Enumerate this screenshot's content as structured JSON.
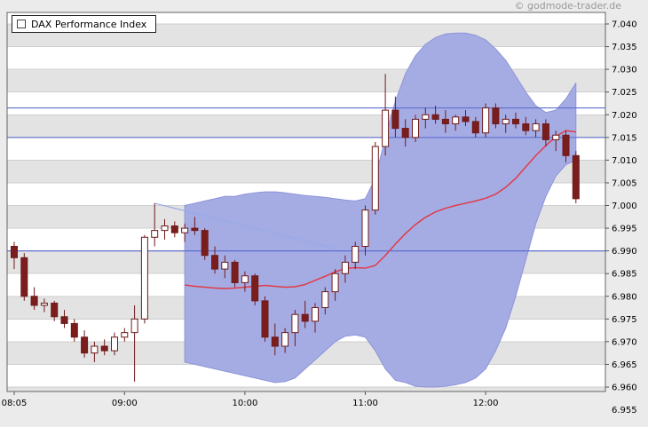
{
  "page": {
    "watermark": "© godmode-trader.de"
  },
  "legend": {
    "title": "DAX Performance Index"
  },
  "colors": {
    "outer_bg": "#ebebeb",
    "plot_bg": "#ffffff",
    "stripe": "#e3e3e3",
    "grid": "#cfcfcf",
    "frame": "#666666",
    "axis_text": "#000000",
    "band_fill": "#a5ace4",
    "band_edge": "#8c94d8",
    "candle_down": "#7a1d1d",
    "candle_up_fill": "#ffffff",
    "candle_edge": "#6e1a1a",
    "ma_line": "#e03c48",
    "hline": "#5f6fce",
    "trendline": "#98a9e6",
    "watermark_text": "#999999"
  },
  "chart_data": {
    "type": "candlestick",
    "title": "DAX Performance Index",
    "interval_minutes": 5,
    "grid": true,
    "legend_position": "top-left",
    "y_axis": {
      "min": 6.955,
      "max": 7.04,
      "step": 0.005,
      "labels": [
        "7.040",
        "7.035",
        "7.030",
        "7.025",
        "7.020",
        "7.015",
        "7.010",
        "7.005",
        "7.000",
        "6.995",
        "6.990",
        "6.985",
        "6.980",
        "6.975",
        "6.970",
        "6.965",
        "6.960",
        "6.955"
      ]
    },
    "x_axis": {
      "labels": [
        "08:05",
        "09:00",
        "10:00",
        "11:00",
        "12:00"
      ],
      "candle_indices": [
        0,
        11,
        23,
        35,
        47
      ]
    },
    "hlines": [
      7.0215,
      7.015,
      6.99
    ],
    "trendline": {
      "start_index": 14,
      "start_price": 7.0005,
      "end_index": 32,
      "end_price": 6.9905
    },
    "candles": [
      {
        "t": "08:05",
        "o": 6.991,
        "h": 6.992,
        "l": 6.986,
        "c": 6.9885
      },
      {
        "t": "08:10",
        "o": 6.9885,
        "h": 6.9895,
        "l": 6.979,
        "c": 6.98
      },
      {
        "t": "08:15",
        "o": 6.98,
        "h": 6.982,
        "l": 6.977,
        "c": 6.978
      },
      {
        "t": "08:20",
        "o": 6.978,
        "h": 6.9795,
        "l": 6.9765,
        "c": 6.9785
      },
      {
        "t": "08:25",
        "o": 6.9785,
        "h": 6.979,
        "l": 6.9745,
        "c": 6.9755
      },
      {
        "t": "08:30",
        "o": 6.9755,
        "h": 6.977,
        "l": 6.973,
        "c": 6.974
      },
      {
        "t": "08:35",
        "o": 6.974,
        "h": 6.975,
        "l": 6.97,
        "c": 6.971
      },
      {
        "t": "08:40",
        "o": 6.971,
        "h": 6.9725,
        "l": 6.9665,
        "c": 6.9675
      },
      {
        "t": "08:45",
        "o": 6.9675,
        "h": 6.97,
        "l": 6.9655,
        "c": 6.969
      },
      {
        "t": "08:50",
        "o": 6.969,
        "h": 6.9705,
        "l": 6.967,
        "c": 6.968
      },
      {
        "t": "08:55",
        "o": 6.968,
        "h": 6.972,
        "l": 6.967,
        "c": 6.971
      },
      {
        "t": "09:00",
        "o": 6.971,
        "h": 6.973,
        "l": 6.97,
        "c": 6.972
      },
      {
        "t": "09:05",
        "o": 6.972,
        "h": 6.978,
        "l": 6.9612,
        "c": 6.975
      },
      {
        "t": "09:10",
        "o": 6.975,
        "h": 6.9935,
        "l": 6.974,
        "c": 6.993
      },
      {
        "t": "09:15",
        "o": 6.993,
        "h": 7.0005,
        "l": 6.991,
        "c": 6.9945
      },
      {
        "t": "09:20",
        "o": 6.9945,
        "h": 6.997,
        "l": 6.9925,
        "c": 6.9955
      },
      {
        "t": "09:25",
        "o": 6.9955,
        "h": 6.9965,
        "l": 6.993,
        "c": 6.994
      },
      {
        "t": "09:30",
        "o": 6.994,
        "h": 6.996,
        "l": 6.992,
        "c": 6.995
      },
      {
        "t": "09:35",
        "o": 6.995,
        "h": 6.9975,
        "l": 6.9935,
        "c": 6.9945
      },
      {
        "t": "09:40",
        "o": 6.9945,
        "h": 6.995,
        "l": 6.988,
        "c": 6.989
      },
      {
        "t": "09:45",
        "o": 6.989,
        "h": 6.991,
        "l": 6.985,
        "c": 6.986
      },
      {
        "t": "09:50",
        "o": 6.986,
        "h": 6.989,
        "l": 6.984,
        "c": 6.9875
      },
      {
        "t": "09:55",
        "o": 6.9875,
        "h": 6.988,
        "l": 6.982,
        "c": 6.983
      },
      {
        "t": "10:00",
        "o": 6.983,
        "h": 6.9855,
        "l": 6.981,
        "c": 6.9845
      },
      {
        "t": "10:05",
        "o": 6.9845,
        "h": 6.985,
        "l": 6.978,
        "c": 6.979
      },
      {
        "t": "10:10",
        "o": 6.979,
        "h": 6.98,
        "l": 6.97,
        "c": 6.971
      },
      {
        "t": "10:15",
        "o": 6.971,
        "h": 6.974,
        "l": 6.967,
        "c": 6.969
      },
      {
        "t": "10:20",
        "o": 6.969,
        "h": 6.973,
        "l": 6.9675,
        "c": 6.972
      },
      {
        "t": "10:25",
        "o": 6.972,
        "h": 6.977,
        "l": 6.969,
        "c": 6.976
      },
      {
        "t": "10:30",
        "o": 6.976,
        "h": 6.979,
        "l": 6.973,
        "c": 6.9745
      },
      {
        "t": "10:35",
        "o": 6.9745,
        "h": 6.9785,
        "l": 6.972,
        "c": 6.9775
      },
      {
        "t": "10:40",
        "o": 6.9775,
        "h": 6.982,
        "l": 6.976,
        "c": 6.981
      },
      {
        "t": "10:45",
        "o": 6.981,
        "h": 6.986,
        "l": 6.979,
        "c": 6.985
      },
      {
        "t": "10:50",
        "o": 6.985,
        "h": 6.989,
        "l": 6.983,
        "c": 6.9875
      },
      {
        "t": "10:55",
        "o": 6.9875,
        "h": 6.992,
        "l": 6.986,
        "c": 6.991
      },
      {
        "t": "11:00",
        "o": 6.991,
        "h": 7.0,
        "l": 6.989,
        "c": 6.999
      },
      {
        "t": "11:05",
        "o": 6.999,
        "h": 7.014,
        "l": 6.998,
        "c": 7.013
      },
      {
        "t": "11:10",
        "o": 7.013,
        "h": 7.029,
        "l": 7.011,
        "c": 7.021
      },
      {
        "t": "11:15",
        "o": 7.021,
        "h": 7.024,
        "l": 7.015,
        "c": 7.017
      },
      {
        "t": "11:20",
        "o": 7.017,
        "h": 7.019,
        "l": 7.013,
        "c": 7.015
      },
      {
        "t": "11:25",
        "o": 7.015,
        "h": 7.02,
        "l": 7.014,
        "c": 7.019
      },
      {
        "t": "11:30",
        "o": 7.019,
        "h": 7.0215,
        "l": 7.017,
        "c": 7.02
      },
      {
        "t": "11:35",
        "o": 7.02,
        "h": 7.022,
        "l": 7.018,
        "c": 7.019
      },
      {
        "t": "11:40",
        "o": 7.019,
        "h": 7.021,
        "l": 7.016,
        "c": 7.018
      },
      {
        "t": "11:45",
        "o": 7.018,
        "h": 7.02,
        "l": 7.0165,
        "c": 7.0195
      },
      {
        "t": "11:50",
        "o": 7.0195,
        "h": 7.021,
        "l": 7.0175,
        "c": 7.0185
      },
      {
        "t": "11:55",
        "o": 7.0185,
        "h": 7.0195,
        "l": 7.015,
        "c": 7.016
      },
      {
        "t": "12:00",
        "o": 7.016,
        "h": 7.0225,
        "l": 7.015,
        "c": 7.0215
      },
      {
        "t": "12:05",
        "o": 7.0215,
        "h": 7.0225,
        "l": 7.017,
        "c": 7.018
      },
      {
        "t": "12:10",
        "o": 7.018,
        "h": 7.02,
        "l": 7.016,
        "c": 7.019
      },
      {
        "t": "12:15",
        "o": 7.019,
        "h": 7.0205,
        "l": 7.017,
        "c": 7.018
      },
      {
        "t": "12:20",
        "o": 7.018,
        "h": 7.0195,
        "l": 7.0155,
        "c": 7.0165
      },
      {
        "t": "12:25",
        "o": 7.0165,
        "h": 7.019,
        "l": 7.015,
        "c": 7.018
      },
      {
        "t": "12:30",
        "o": 7.018,
        "h": 7.019,
        "l": 7.013,
        "c": 7.0145
      },
      {
        "t": "12:35",
        "o": 7.0145,
        "h": 7.0165,
        "l": 7.012,
        "c": 7.0155
      },
      {
        "t": "12:40",
        "o": 7.0155,
        "h": 7.0165,
        "l": 7.0095,
        "c": 7.011
      },
      {
        "t": "12:45",
        "o": 7.011,
        "h": 7.012,
        "l": 7.0005,
        "c": 7.0015
      }
    ],
    "band": {
      "start_index": 17,
      "upper": [
        7.0,
        7.0005,
        7.001,
        7.0015,
        7.002,
        7.002,
        7.0025,
        7.0028,
        7.003,
        7.003,
        7.0028,
        7.0025,
        7.0022,
        7.002,
        7.0018,
        7.0015,
        7.0012,
        7.001,
        7.0015,
        7.006,
        7.015,
        7.023,
        7.029,
        7.033,
        7.0355,
        7.037,
        7.0378,
        7.038,
        7.038,
        7.0375,
        7.0365,
        7.0345,
        7.032,
        7.0285,
        7.025,
        7.022,
        7.0205,
        7.021,
        7.0235,
        7.027
      ],
      "lower": [
        6.9655,
        6.965,
        6.9645,
        6.964,
        6.9635,
        6.963,
        6.9625,
        6.962,
        6.9615,
        6.961,
        6.9612,
        6.962,
        6.964,
        6.966,
        6.968,
        6.97,
        6.9712,
        6.9715,
        6.971,
        6.968,
        6.964,
        6.9615,
        6.961,
        6.9602,
        6.96,
        6.96,
        6.9602,
        6.9605,
        6.961,
        6.962,
        6.964,
        6.968,
        6.973,
        6.98,
        6.988,
        6.996,
        7.002,
        7.0065,
        7.009,
        7.01
      ]
    },
    "ma": {
      "start_index": 17,
      "values": [
        6.9825,
        6.9822,
        6.982,
        6.9818,
        6.9817,
        6.9818,
        6.982,
        6.9822,
        6.9824,
        6.9822,
        6.982,
        6.9821,
        6.9826,
        6.9835,
        6.9844,
        6.9854,
        6.9861,
        6.9863,
        6.9862,
        6.9868,
        6.989,
        6.9915,
        6.9938,
        6.9958,
        6.9974,
        6.9986,
        6.9994,
        7.0,
        7.0005,
        7.001,
        7.0016,
        7.0025,
        7.004,
        7.006,
        7.0085,
        7.011,
        7.0132,
        7.0152,
        7.0165,
        7.0162
      ]
    }
  }
}
